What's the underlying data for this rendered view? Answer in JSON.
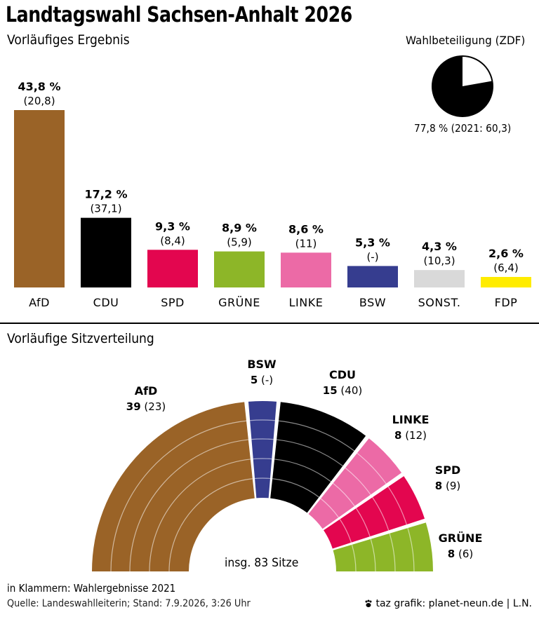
{
  "header": {
    "title": "Landtagswahl Sachsen-Anhalt 2026",
    "subtitle": "Vorläufiges Ergebnis"
  },
  "turnout": {
    "label": "Wahlbeteiligung (ZDF)",
    "value_text": "77,8 % (2021: 60,3)",
    "value": 77.8
  },
  "chart_data": [
    {
      "type": "bar",
      "categories": [
        "AfD",
        "CDU",
        "SPD",
        "GRÜNE",
        "LINKE",
        "BSW",
        "SONST.",
        "FDP"
      ],
      "values": [
        43.8,
        17.2,
        9.3,
        8.9,
        8.6,
        5.3,
        4.3,
        2.6
      ],
      "value_labels": [
        "43,8 %",
        "17,2 %",
        "9,3 %",
        "8,9 %",
        "8,6 %",
        "5,3 %",
        "4,3 %",
        "2,6 %"
      ],
      "previous_labels": [
        "(20,8)",
        "(37,1)",
        "(8,4)",
        "(5,9)",
        "(11)",
        "(-)",
        "(10,3)",
        "(6,4)"
      ],
      "colors": [
        "#9a6327",
        "#000000",
        "#e3064f",
        "#8db628",
        "#ec6aa6",
        "#363d8f",
        "#d9d9d9",
        "#ffec00"
      ],
      "ylim": [
        0,
        43.8
      ]
    },
    {
      "type": "pie",
      "title": "Vorläufige Sitzverteilung",
      "categories": [
        "AfD",
        "BSW",
        "CDU",
        "LINKE",
        "SPD",
        "GRÜNE"
      ],
      "values": [
        39,
        5,
        15,
        8,
        8,
        8
      ],
      "previous_labels": [
        "(23)",
        "(-)",
        "(40)",
        "(12)",
        "(9)",
        "(6)"
      ],
      "colors": [
        "#9a6327",
        "#363d8f",
        "#000000",
        "#ec6aa6",
        "#e3064f",
        "#8db628"
      ],
      "total_label": "insg. 83 Sitze"
    }
  ],
  "footer": {
    "note": "in Klammern: Wahlergebnisse 2021",
    "source": "Quelle: Landeswahlleiterin; Stand: 7.9.2026, 3:26 Uhr",
    "credit": "taz grafik: planet-neun.de | L.N."
  }
}
